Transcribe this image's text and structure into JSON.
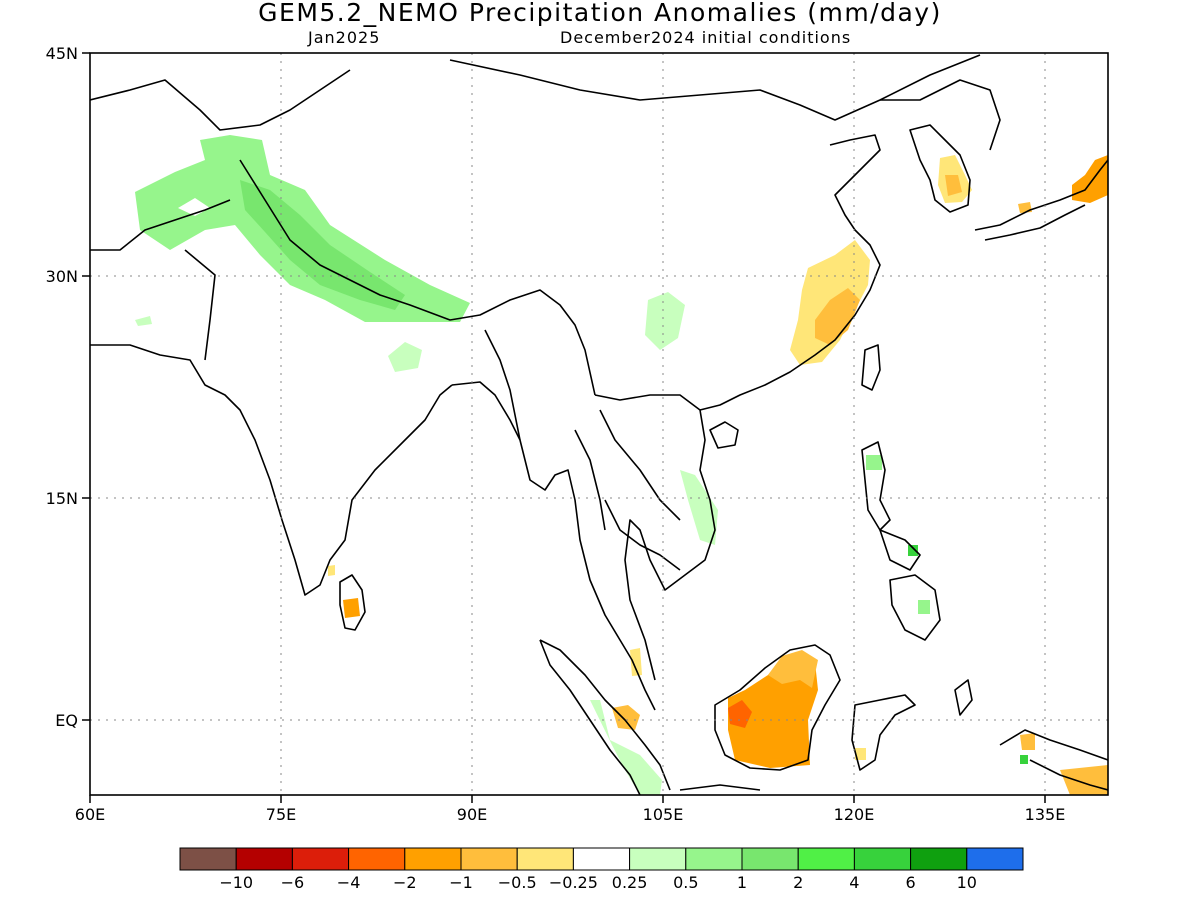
{
  "header": {
    "title": "GEM5.2_NEMO Precipitation Anomalies (mm/day)",
    "month": "Jan2025",
    "init": "December2024 initial conditions"
  },
  "map": {
    "lon_range": [
      60,
      140
    ],
    "lat_range": [
      -5,
      45
    ],
    "lon_ticks": [
      "60E",
      "75E",
      "90E",
      "105E",
      "120E",
      "135E"
    ],
    "lon_tick_values": [
      60,
      75,
      90,
      105,
      120,
      135
    ],
    "lat_ticks": [
      "45N",
      "30N",
      "15N",
      "EQ"
    ],
    "lat_tick_values": [
      45,
      30,
      15,
      0
    ],
    "grid": "dotted",
    "anomaly_regions": [
      {
        "name": "western-himalaya-wet",
        "category": "0.5-1",
        "color": "#96f58c"
      },
      {
        "name": "afghanistan-wet",
        "category": "0.25-0.5",
        "color": "#c8ffbe"
      },
      {
        "name": "nepal-wet",
        "category": "1-2",
        "color": "#78e66e"
      },
      {
        "name": "east-india-wet",
        "category": "0.25-0.5",
        "color": "#c8ffbe"
      },
      {
        "name": "yunnan-wet",
        "category": "0.25-0.5",
        "color": "#c8ffbe"
      },
      {
        "name": "southeast-china-dry",
        "category": "-0.5--0.25",
        "color": "#ffe678"
      },
      {
        "name": "southeast-china-dry-core",
        "category": "-1--0.5",
        "color": "#ffbe3c"
      },
      {
        "name": "korea-dry",
        "category": "-0.5--0.25",
        "color": "#ffe678"
      },
      {
        "name": "japan-dry",
        "category": "-2--1",
        "color": "#ffa000"
      },
      {
        "name": "borneo-dry",
        "category": "-2--1",
        "color": "#ffa000"
      },
      {
        "name": "borneo-dry-core",
        "category": "-4--2",
        "color": "#ff6400"
      },
      {
        "name": "sumatra-wet",
        "category": "0.25-0.5",
        "color": "#c8ffbe"
      },
      {
        "name": "new-guinea-dry",
        "category": "-1--0.5",
        "color": "#ffbe3c"
      },
      {
        "name": "sri-lanka-dry",
        "category": "-2--1",
        "color": "#ffa000"
      },
      {
        "name": "philippines-wet",
        "category": "0.5-1",
        "color": "#96f58c"
      }
    ]
  },
  "colorbar": {
    "labels": [
      "-10",
      "-6",
      "-4",
      "-2",
      "-1",
      "-0.5",
      "-0.25",
      "0.25",
      "0.5",
      "1",
      "2",
      "4",
      "6",
      "10"
    ],
    "colors": [
      "#7d5046",
      "#b40000",
      "#dc1e0a",
      "#ff6400",
      "#ffa000",
      "#ffbe3c",
      "#ffe678",
      "#ffffff",
      "#c8ffbe",
      "#96f58c",
      "#78e66e",
      "#50f046",
      "#37d23c",
      "#0fa00f",
      "#1e6eeb"
    ]
  }
}
